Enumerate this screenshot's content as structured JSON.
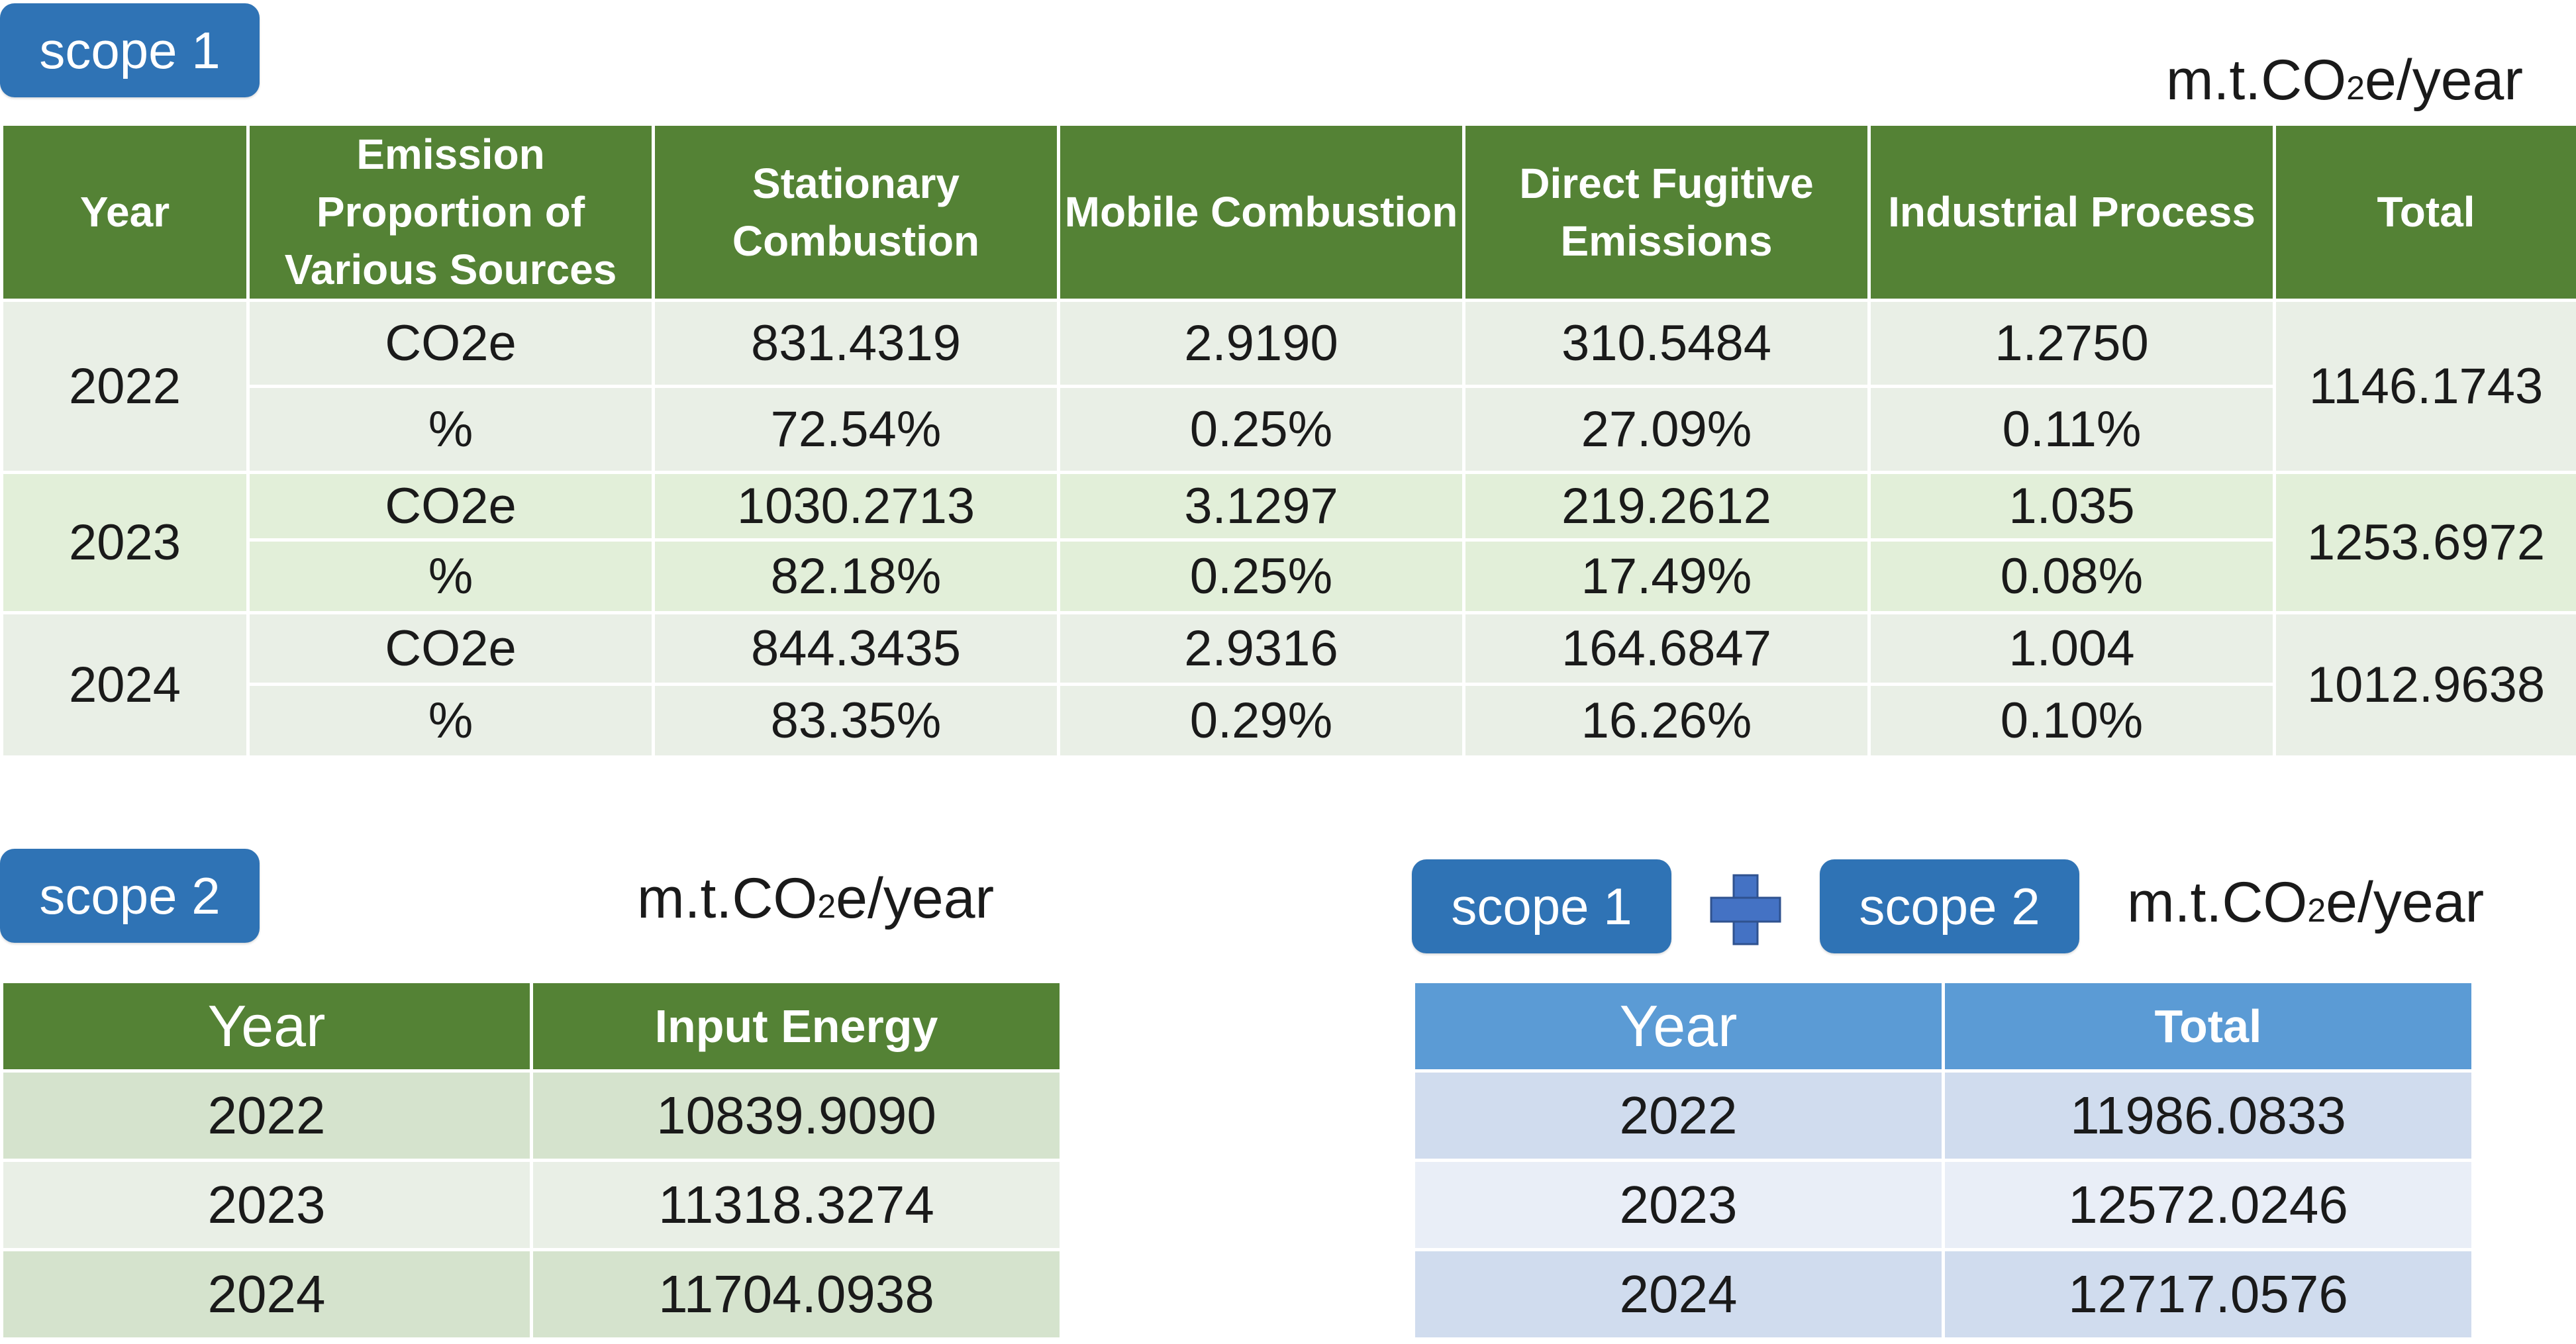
{
  "scope1": {
    "badge": "scope 1",
    "unit": {
      "pre": "m.t.CO",
      "sub": "2",
      "post": "e/year"
    },
    "headers": [
      "Year",
      "Emission Proportion of Various Sources",
      "Stationary Combustion",
      "Mobile Combustion",
      "Direct Fugitive Emissions",
      "Industrial Process",
      "Total"
    ],
    "rows": [
      {
        "year": "2022",
        "co2_label": "CO2e",
        "pct_label": "%",
        "co2": [
          "831.4319",
          "2.9190",
          "310.5484",
          "1.2750"
        ],
        "pct": [
          "72.54%",
          "0.25%",
          "27.09%",
          "0.11%"
        ],
        "total": "1146.1743"
      },
      {
        "year": "2023",
        "co2_label": "CO2e",
        "pct_label": "%",
        "co2": [
          "1030.2713",
          "3.1297",
          "219.2612",
          "1.035"
        ],
        "pct": [
          "82.18%",
          "0.25%",
          "17.49%",
          "0.08%"
        ],
        "total": "1253.6972"
      },
      {
        "year": "2024",
        "co2_label": "CO2e",
        "pct_label": "%",
        "co2": [
          "844.3435",
          "2.9316",
          "164.6847",
          "1.004"
        ],
        "pct": [
          "83.35%",
          "0.29%",
          "16.26%",
          "0.10%"
        ],
        "total": "1012.9638"
      }
    ]
  },
  "scope2": {
    "badge": "scope 2",
    "unit": {
      "pre": "m.t.CO",
      "sub": "2",
      "post": "e/year"
    },
    "headers": [
      "Year",
      "Input Energy"
    ],
    "rows": [
      {
        "year": "2022",
        "value": "10839.9090"
      },
      {
        "year": "2023",
        "value": "11318.3274"
      },
      {
        "year": "2024",
        "value": "11704.0938"
      }
    ]
  },
  "combined": {
    "badge1": "scope 1",
    "badge2": "scope 2",
    "unit": {
      "pre": "m.t.CO",
      "sub": "2",
      "post": "e/year"
    },
    "headers": [
      "Year",
      "Total"
    ],
    "rows": [
      {
        "year": "2022",
        "value": "11986.0833"
      },
      {
        "year": "2023",
        "value": "12572.0246"
      },
      {
        "year": "2024",
        "value": "12717.0576"
      }
    ]
  },
  "colors": {
    "badge": "#2f73b5",
    "green_header": "#548235",
    "blue_header": "#5b9bd5",
    "plus_icon": "#4472c4"
  }
}
